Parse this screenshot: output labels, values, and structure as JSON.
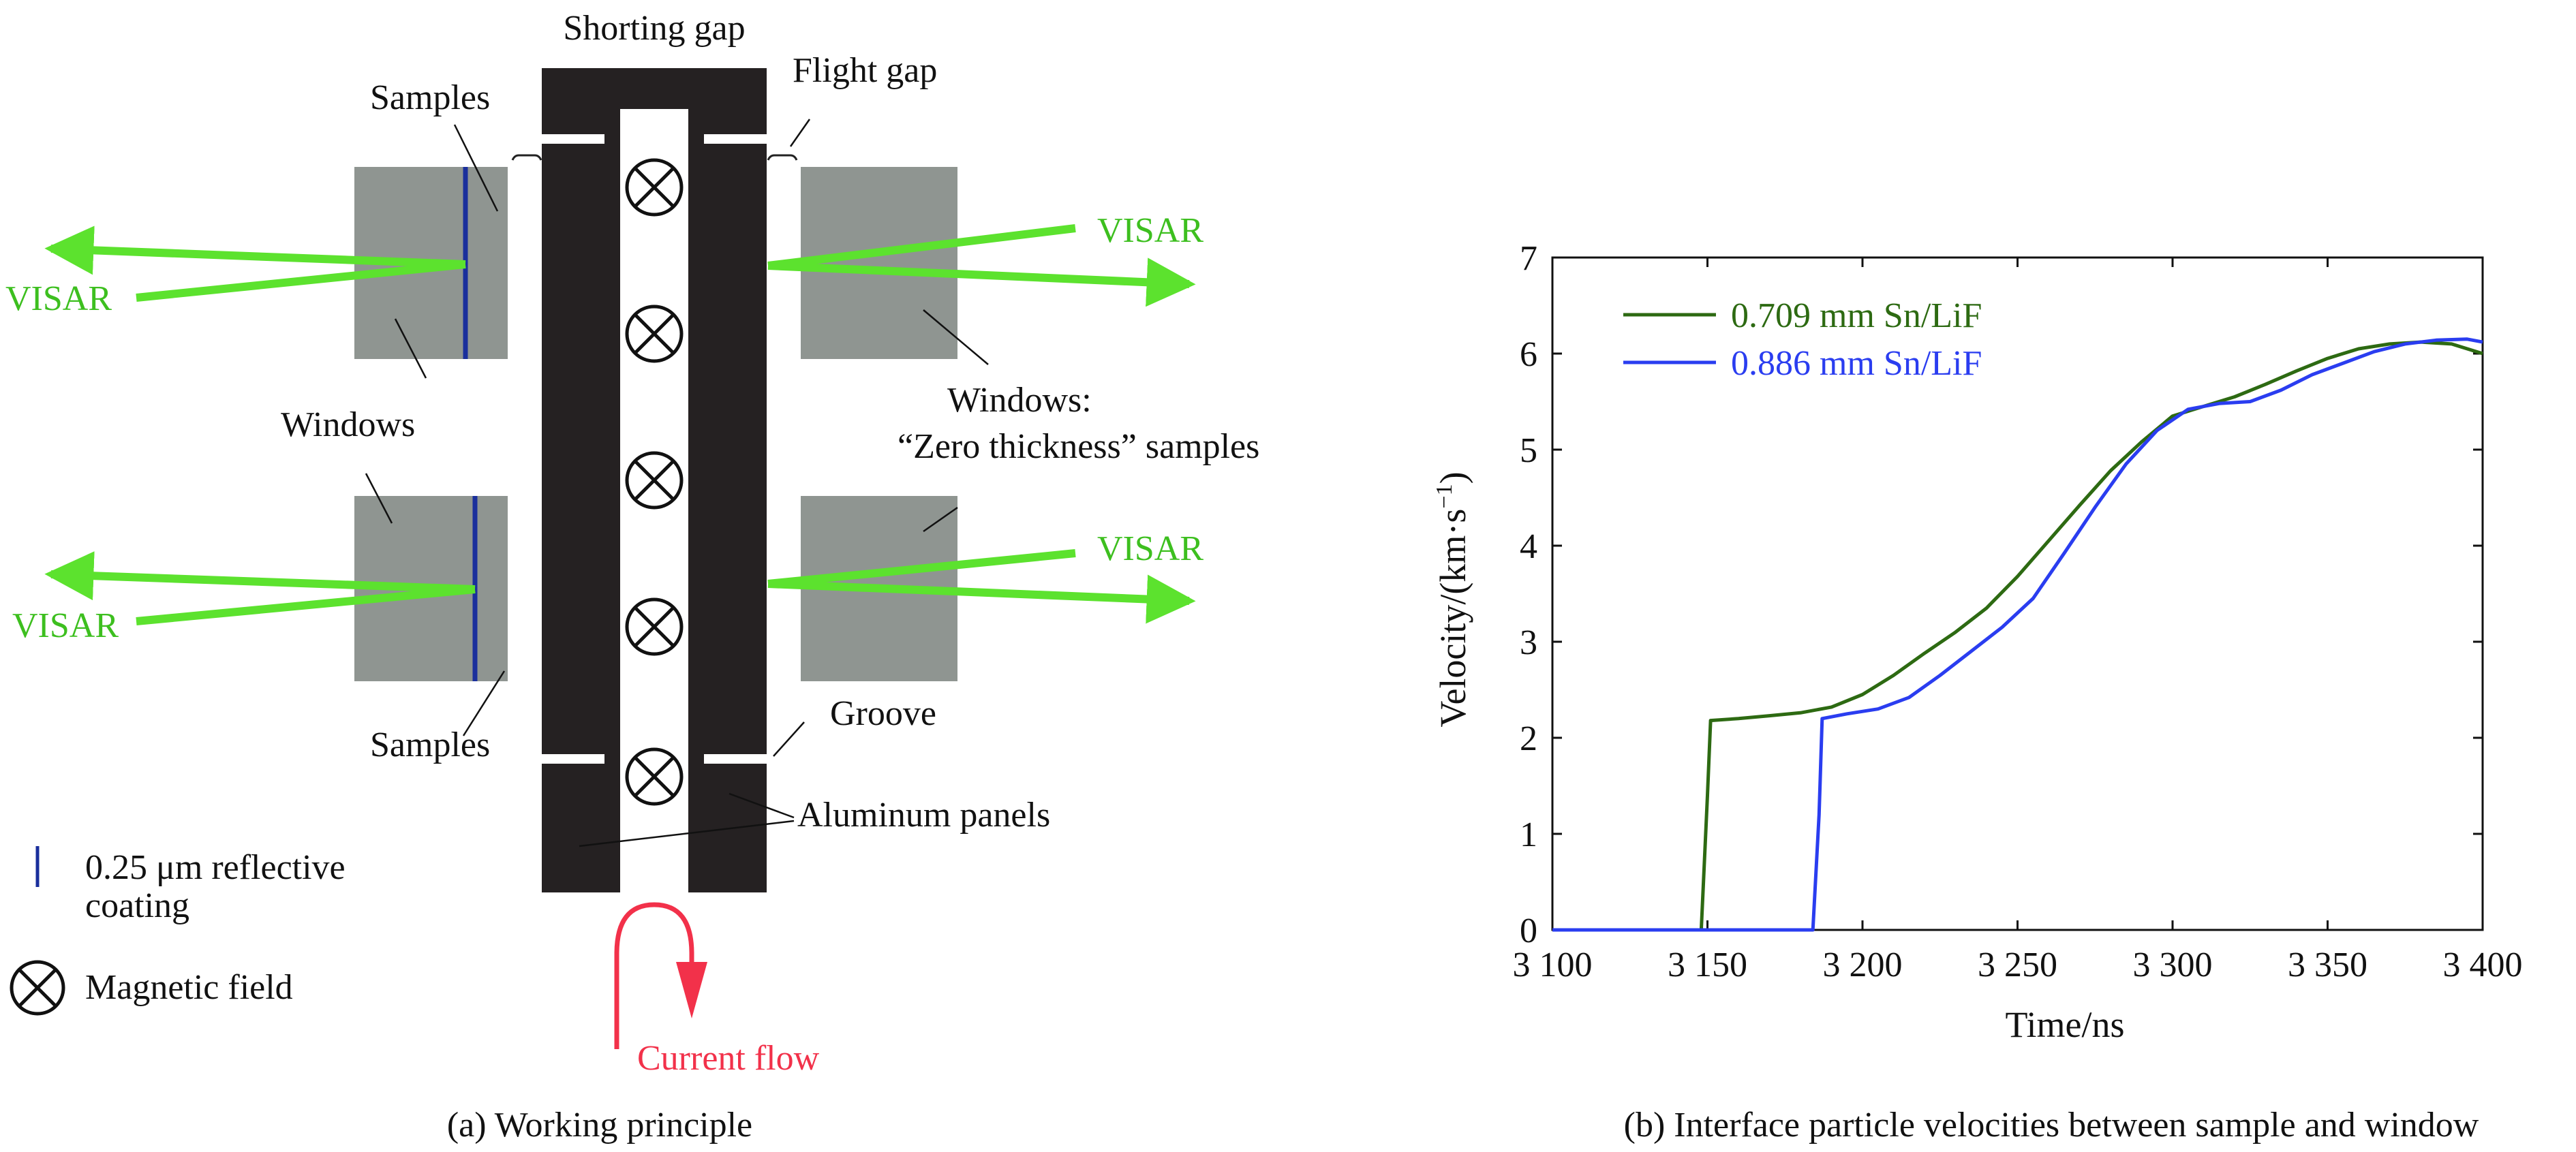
{
  "left_panel": {
    "caption": "(a) Working principle",
    "labels": {
      "shorting_gap": "Shorting gap",
      "flight_gap": "Flight gap",
      "samples_top": "Samples",
      "samples_bottom": "Samples",
      "windows": "Windows",
      "windows_zero_line1": "Windows:",
      "windows_zero_line2": "“Zero thickness” samples",
      "groove": "Groove",
      "aluminum_panels": "Aluminum panels",
      "visar": "VISAR",
      "current_flow": "Current flow"
    },
    "legend": {
      "coating_line1": "0.25 μm reflective",
      "coating_line2": "coating",
      "magnetic_field": "Magnetic field"
    },
    "colors": {
      "panel": "#252122",
      "window": "#8f9591",
      "coating": "#1a2f9c",
      "visar": "#5ce22e",
      "visar_text": "#3dbf1f",
      "current": "#f2314a"
    }
  },
  "right_panel": {
    "caption": "(b)  Interface particle velocities between sample and window"
  },
  "chart_data": {
    "type": "line",
    "title": "",
    "xlabel": "Time/ns",
    "ylabel": "Velocity/(km·s",
    "ylabel_sup": "−1",
    "ylabel_close": ")",
    "xlim": [
      3100,
      3400
    ],
    "ylim": [
      0,
      7
    ],
    "xticks": [
      3100,
      3150,
      3200,
      3250,
      3300,
      3350,
      3400
    ],
    "xtick_labels": [
      "3 100",
      "3 150",
      "3 200",
      "3 250",
      "3 300",
      "3 350",
      "3 400"
    ],
    "yticks": [
      0,
      1,
      2,
      3,
      4,
      5,
      6,
      7
    ],
    "ytick_labels": [
      "0",
      "1",
      "2",
      "3",
      "4",
      "5",
      "6",
      "7"
    ],
    "legend_position": "top-left",
    "grid": false,
    "series": [
      {
        "name": "0.709 mm Sn/LiF",
        "color": "#2d6a12",
        "x": [
          3100,
          3148,
          3150,
          3151,
          3160,
          3170,
          3180,
          3190,
          3200,
          3210,
          3220,
          3230,
          3240,
          3250,
          3260,
          3270,
          3280,
          3290,
          3300,
          3310,
          3320,
          3330,
          3340,
          3350,
          3360,
          3370,
          3380,
          3390,
          3400
        ],
        "y": [
          0,
          0,
          1.4,
          2.18,
          2.2,
          2.23,
          2.26,
          2.32,
          2.45,
          2.65,
          2.88,
          3.1,
          3.35,
          3.68,
          4.05,
          4.42,
          4.78,
          5.08,
          5.35,
          5.45,
          5.55,
          5.68,
          5.82,
          5.95,
          6.05,
          6.1,
          6.12,
          6.1,
          6.0
        ]
      },
      {
        "name": "0.886 mm Sn/LiF",
        "color": "#2a3df0",
        "x": [
          3100,
          3184,
          3186,
          3187,
          3195,
          3205,
          3215,
          3225,
          3235,
          3245,
          3255,
          3265,
          3275,
          3285,
          3295,
          3305,
          3315,
          3325,
          3335,
          3345,
          3355,
          3365,
          3375,
          3385,
          3395,
          3400
        ],
        "y": [
          0,
          0,
          1.2,
          2.2,
          2.25,
          2.3,
          2.42,
          2.65,
          2.9,
          3.15,
          3.45,
          3.92,
          4.4,
          4.85,
          5.2,
          5.42,
          5.48,
          5.5,
          5.62,
          5.78,
          5.9,
          6.02,
          6.1,
          6.14,
          6.15,
          6.12
        ]
      }
    ]
  }
}
